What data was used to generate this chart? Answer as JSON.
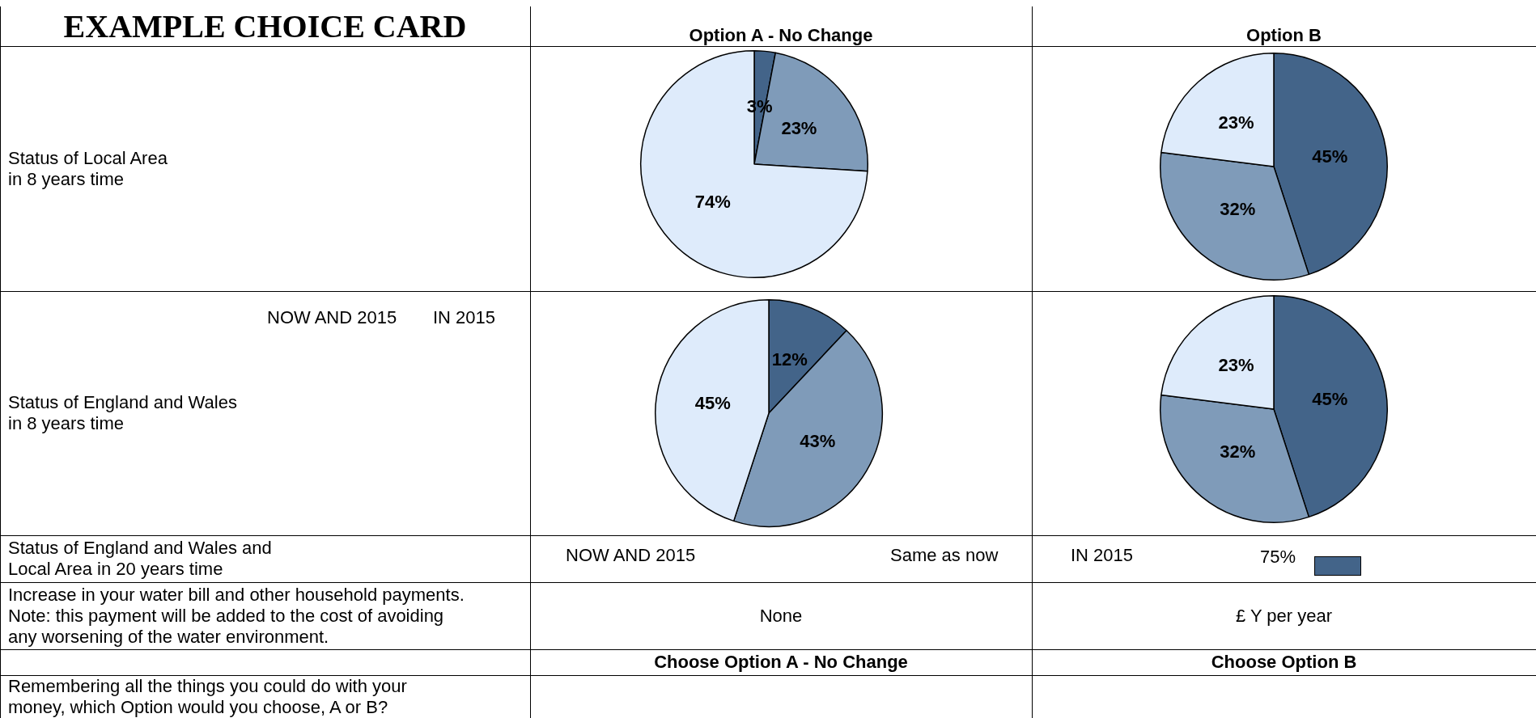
{
  "chart_data": [
    {
      "type": "other",
      "title": "EXAMPLE CHOICE CARD",
      "annotations": [
        "Option A - No Change",
        "Option B",
        "Status of Local Area\nin 8 years time",
        "NOW AND 2015",
        "IN 2015",
        "Status of England and Wales\nin 8 years time",
        "Status of England and Wales and\nLocal Area in 20 years time",
        "NOW AND 2015",
        "Same as now",
        "IN 2015",
        "75%",
        "Increase in your water bill and other household payments.\nNote: this payment will be added to the cost of avoiding\nany worsening of the water environment.",
        "None",
        "£ Y per year",
        "Choose Option A - No Change",
        "Choose Option B",
        "Remembering all the things you could do with your\nmoney, which Option would you choose, A or B?"
      ]
    },
    {
      "type": "pie",
      "categories": [
        null,
        null,
        null
      ],
      "values": [
        3,
        23,
        74
      ],
      "colors": [
        "#436489",
        "#7f9bb9",
        "#deebfb"
      ],
      "value_labels": [
        "3%",
        "23%",
        "74%"
      ]
    },
    {
      "type": "pie",
      "categories": [
        null,
        null,
        null
      ],
      "values": [
        45,
        32,
        23
      ],
      "colors": [
        "#436489",
        "#7f9bb9",
        "#deebfb"
      ],
      "value_labels": [
        "45%",
        "32%",
        "23%"
      ]
    },
    {
      "type": "pie",
      "categories": [
        null,
        null,
        null
      ],
      "values": [
        12,
        43,
        45
      ],
      "colors": [
        "#436489",
        "#7f9bb9",
        "#deebfb"
      ],
      "value_labels": [
        "12%",
        "43%",
        "45%"
      ]
    },
    {
      "type": "pie",
      "categories": [
        null,
        null,
        null
      ],
      "values": [
        45,
        32,
        23
      ],
      "colors": [
        "#436489",
        "#7f9bb9",
        "#deebfb"
      ],
      "value_labels": [
        "45%",
        "32%",
        "23%"
      ]
    }
  ]
}
